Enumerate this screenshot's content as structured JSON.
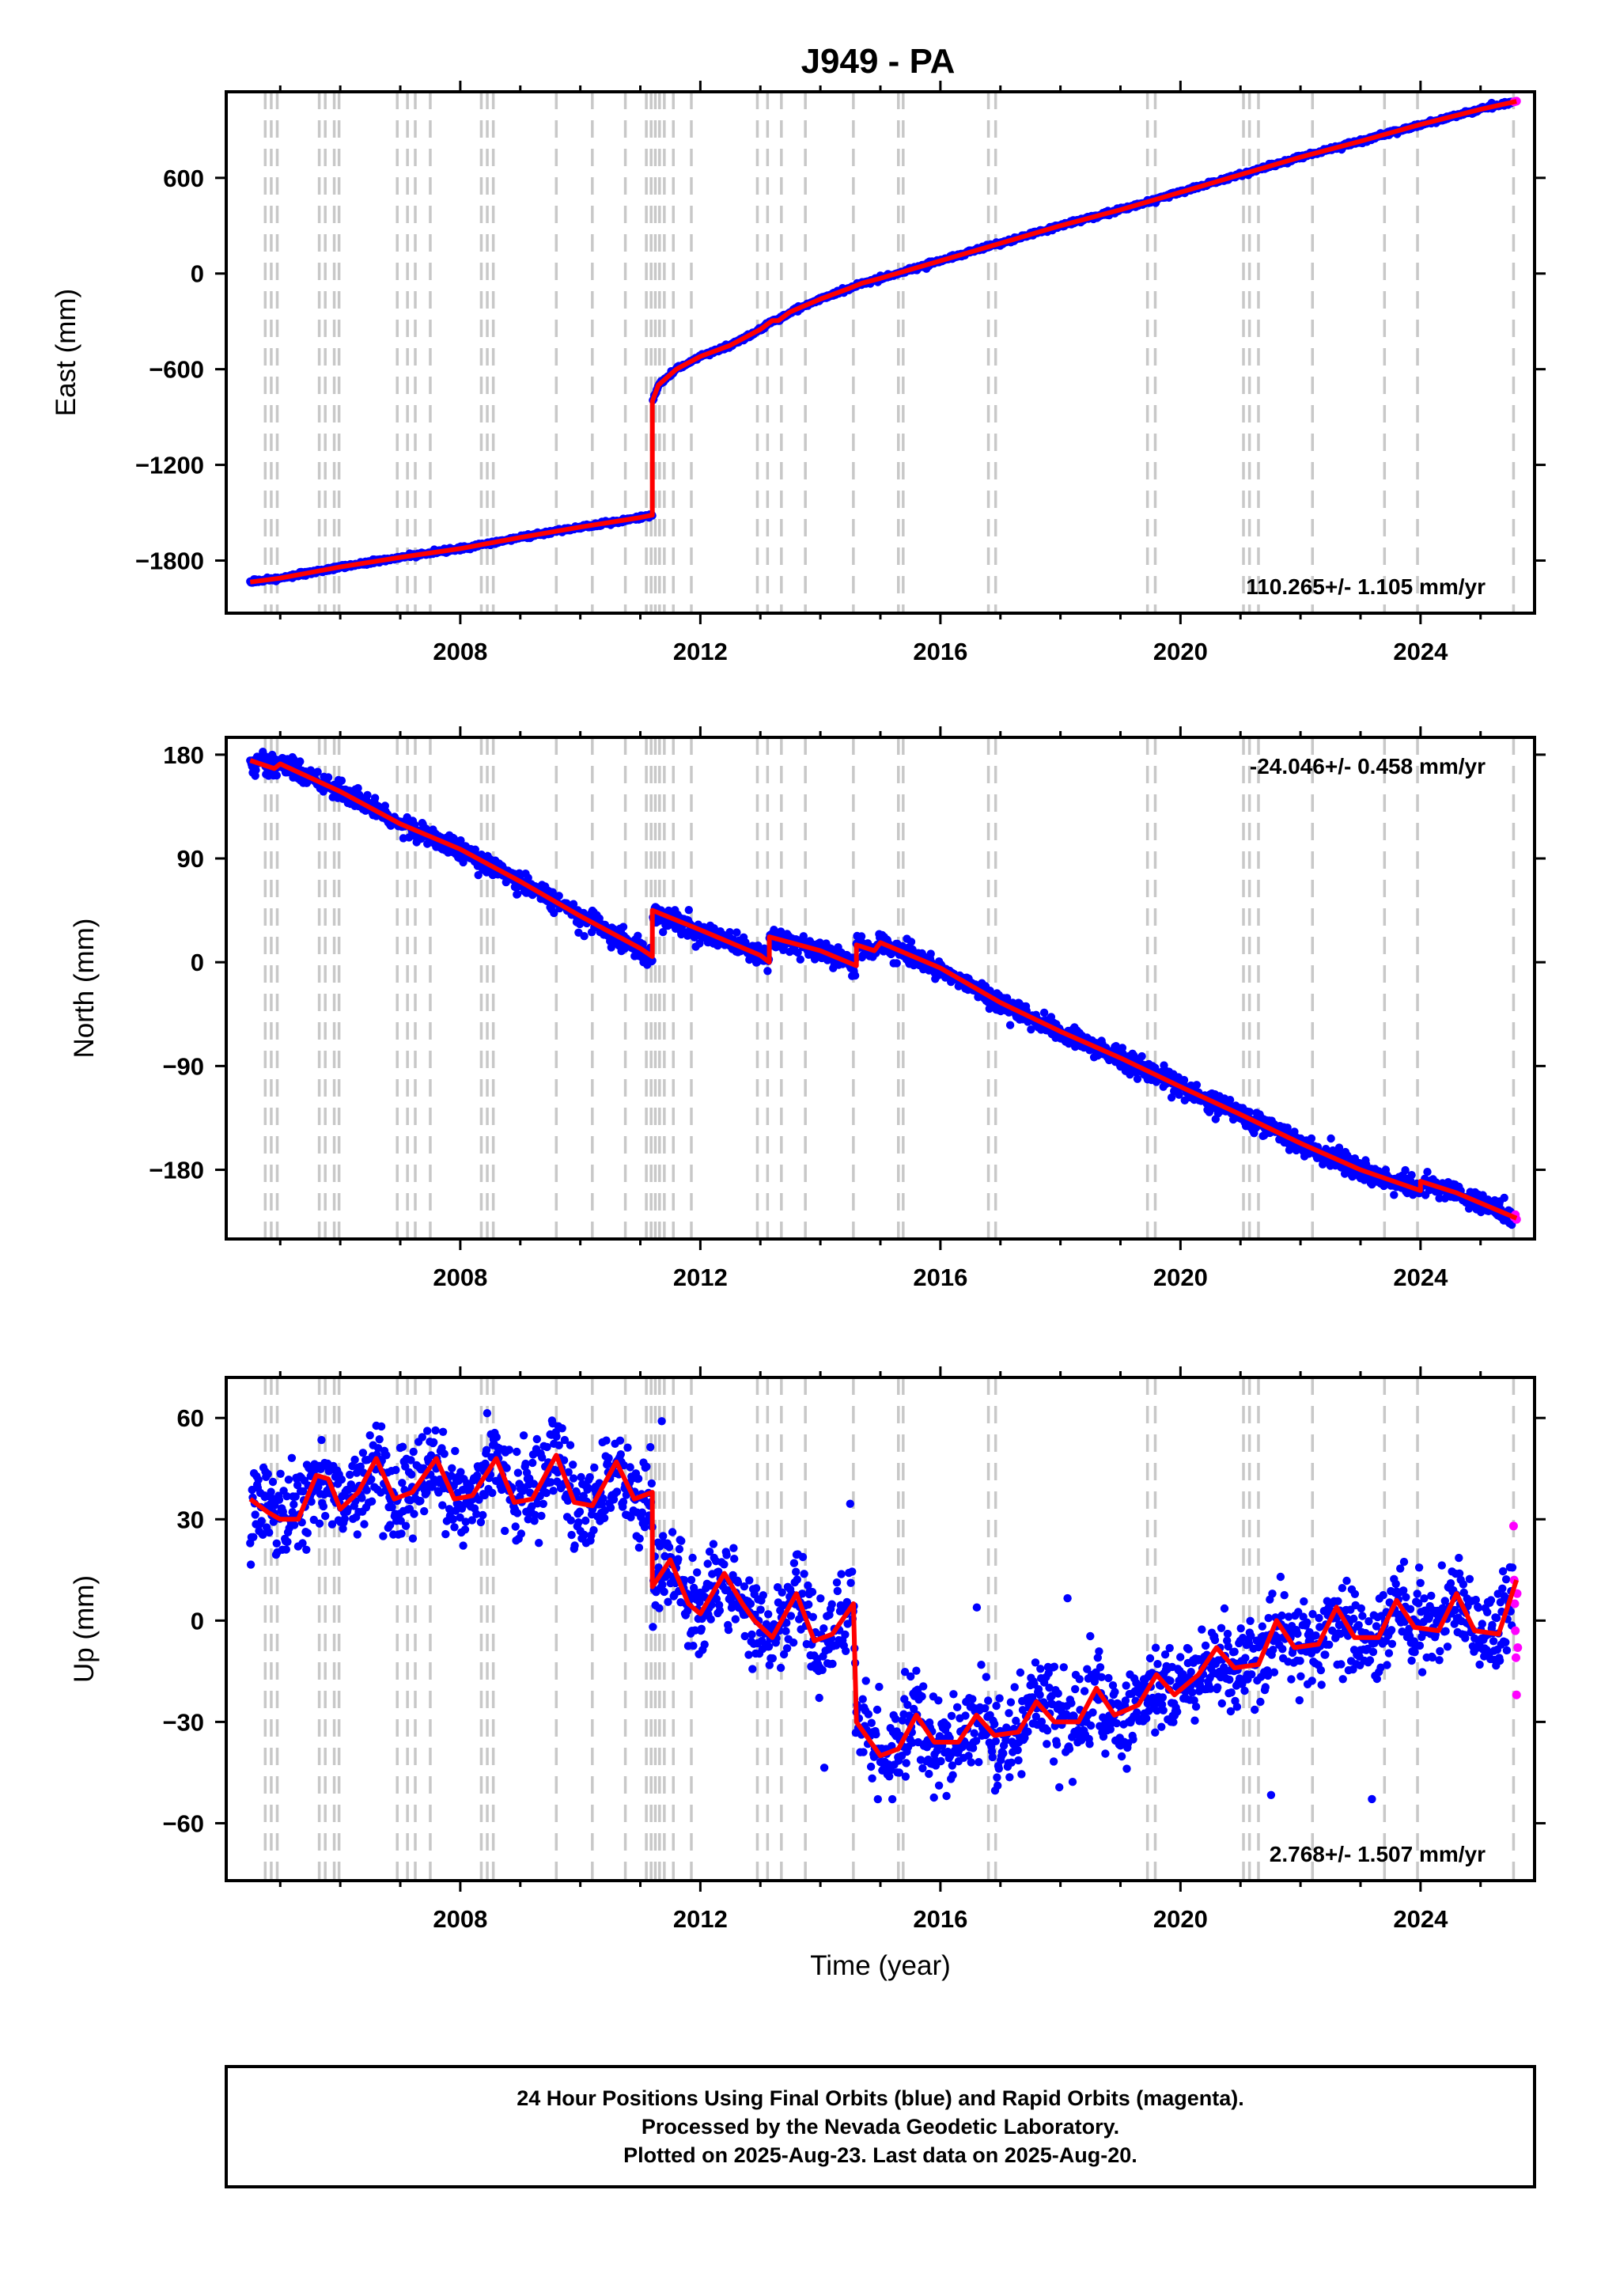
{
  "title": "J949 - PA",
  "colors": {
    "final_orbits": "#0000ff",
    "rapid_orbits": "#ff00ff",
    "model": "#ff0000",
    "event_lines": "#c8c8c8",
    "frame": "#000000"
  },
  "events": [
    2004.75,
    2004.85,
    2004.95,
    2005.65,
    2005.75,
    2005.9,
    2005.98,
    2006.95,
    2007.12,
    2007.25,
    2007.5,
    2008.35,
    2008.45,
    2008.55,
    2009.6,
    2010.2,
    2010.75,
    2011.1,
    2011.18,
    2011.25,
    2011.32,
    2011.4,
    2011.55,
    2011.85,
    2012.95,
    2013.12,
    2013.35,
    2013.75,
    2014.55,
    2015.3,
    2015.38,
    2016.8,
    2016.92,
    2019.45,
    2019.58,
    2021.05,
    2021.15,
    2021.3,
    2022.2,
    2023.4,
    2023.95,
    2025.55
  ],
  "x_axis": {
    "label": "Time (year)",
    "range": [
      2004.1,
      2025.9
    ],
    "ticks": [
      2008,
      2012,
      2016,
      2020,
      2024
    ],
    "tick_labels": [
      "2008",
      "2012",
      "2016",
      "2020",
      "2024"
    ]
  },
  "chart_data": [
    {
      "type": "scatter",
      "panel": "east",
      "ylabel": "East (mm)",
      "ylim": [
        -2130,
        1140
      ],
      "yticks": [
        600,
        0,
        -600,
        -1200,
        -1800
      ],
      "ytick_labels": [
        "600",
        "0",
        "−600",
        "−1200",
        "−1800"
      ],
      "rate_label": "110.265+/- 1.105 mm/yr",
      "rate_position": "bottom-right",
      "model_series": [
        [
          2004.5,
          -1935
        ],
        [
          2005.0,
          -1910
        ],
        [
          2006.0,
          -1840
        ],
        [
          2007.0,
          -1780
        ],
        [
          2008.0,
          -1725
        ],
        [
          2009.0,
          -1655
        ],
        [
          2010.0,
          -1590
        ],
        [
          2011.0,
          -1530
        ],
        [
          2011.2,
          -1515
        ],
        [
          2011.2,
          -800
        ],
        [
          2011.3,
          -700
        ],
        [
          2011.6,
          -600
        ],
        [
          2012.0,
          -520
        ],
        [
          2012.5,
          -450
        ],
        [
          2013.0,
          -350
        ],
        [
          2013.2,
          -295
        ],
        [
          2013.3,
          -295
        ],
        [
          2013.5,
          -240
        ],
        [
          2014.0,
          -160
        ],
        [
          2014.5,
          -90
        ],
        [
          2014.7,
          -60
        ],
        [
          2015.0,
          -30
        ],
        [
          2016.0,
          80
        ],
        [
          2017.0,
          190
        ],
        [
          2018.0,
          300
        ],
        [
          2019.0,
          400
        ],
        [
          2020.0,
          510
        ],
        [
          2021.0,
          620
        ],
        [
          2022.0,
          730
        ],
        [
          2023.0,
          830
        ],
        [
          2024.0,
          935
        ],
        [
          2025.0,
          1030
        ],
        [
          2025.6,
          1080
        ]
      ],
      "rapid_points": [
        [
          2025.56,
          1077
        ],
        [
          2025.58,
          1079
        ],
        [
          2025.6,
          1081
        ]
      ]
    },
    {
      "type": "scatter",
      "panel": "north",
      "ylabel": "North (mm)",
      "ylim": [
        -240,
        195
      ],
      "yticks": [
        180,
        90,
        0,
        -90,
        -180
      ],
      "ytick_labels": [
        "180",
        "90",
        "0",
        "−90",
        "−180"
      ],
      "rate_label": "-24.046+/- 0.458 mm/yr",
      "rate_position": "top-right",
      "model_series": [
        [
          2004.5,
          175
        ],
        [
          2004.9,
          168
        ],
        [
          2005.0,
          172
        ],
        [
          2006.0,
          148
        ],
        [
          2007.0,
          120
        ],
        [
          2008.0,
          98
        ],
        [
          2009.0,
          70
        ],
        [
          2010.0,
          40
        ],
        [
          2011.0,
          12
        ],
        [
          2011.2,
          5
        ],
        [
          2011.2,
          45
        ],
        [
          2012.0,
          28
        ],
        [
          2013.0,
          6
        ],
        [
          2013.15,
          0
        ],
        [
          2013.15,
          22
        ],
        [
          2014.0,
          10
        ],
        [
          2014.6,
          -3
        ],
        [
          2014.6,
          15
        ],
        [
          2014.9,
          10
        ],
        [
          2015.0,
          17
        ],
        [
          2016.0,
          -5
        ],
        [
          2017.0,
          -35
        ],
        [
          2018.0,
          -60
        ],
        [
          2019.0,
          -83
        ],
        [
          2020.0,
          -108
        ],
        [
          2021.0,
          -132
        ],
        [
          2022.0,
          -157
        ],
        [
          2023.0,
          -180
        ],
        [
          2024.0,
          -198
        ],
        [
          2024.0,
          -190
        ],
        [
          2024.6,
          -200
        ],
        [
          2025.6,
          -222
        ]
      ],
      "rapid_points": [
        [
          2025.56,
          -221
        ],
        [
          2025.58,
          -219
        ],
        [
          2025.6,
          -223
        ]
      ]
    },
    {
      "type": "scatter",
      "panel": "up",
      "ylabel": "Up (mm)",
      "ylim": [
        -77,
        72
      ],
      "yticks": [
        60,
        30,
        0,
        -30,
        -60
      ],
      "ytick_labels": [
        "60",
        "30",
        "0",
        "−30",
        "−60"
      ],
      "rate_label": "2.768+/- 1.507 mm/yr",
      "rate_position": "bottom-right",
      "model_series": [
        [
          2004.5,
          36
        ],
        [
          2004.8,
          32
        ],
        [
          2005.0,
          30
        ],
        [
          2005.3,
          30
        ],
        [
          2005.6,
          43
        ],
        [
          2005.8,
          42
        ],
        [
          2006.0,
          33
        ],
        [
          2006.3,
          38
        ],
        [
          2006.6,
          48
        ],
        [
          2006.9,
          36
        ],
        [
          2007.2,
          38
        ],
        [
          2007.6,
          48
        ],
        [
          2007.9,
          36
        ],
        [
          2008.2,
          37
        ],
        [
          2008.6,
          48
        ],
        [
          2008.9,
          35
        ],
        [
          2009.2,
          36
        ],
        [
          2009.6,
          49
        ],
        [
          2009.9,
          35
        ],
        [
          2010.2,
          34
        ],
        [
          2010.6,
          47
        ],
        [
          2010.9,
          36
        ],
        [
          2011.2,
          38
        ],
        [
          2011.2,
          10
        ],
        [
          2011.5,
          18
        ],
        [
          2011.8,
          5
        ],
        [
          2012.0,
          2
        ],
        [
          2012.4,
          14
        ],
        [
          2012.7,
          5
        ],
        [
          2012.9,
          0
        ],
        [
          2013.2,
          -5
        ],
        [
          2013.6,
          8
        ],
        [
          2013.9,
          -6
        ],
        [
          2014.2,
          -4
        ],
        [
          2014.55,
          5
        ],
        [
          2014.6,
          -30
        ],
        [
          2015.0,
          -40
        ],
        [
          2015.3,
          -38
        ],
        [
          2015.6,
          -28
        ],
        [
          2015.9,
          -36
        ],
        [
          2016.3,
          -36
        ],
        [
          2016.6,
          -28
        ],
        [
          2016.9,
          -34
        ],
        [
          2017.3,
          -33
        ],
        [
          2017.6,
          -24
        ],
        [
          2017.9,
          -30
        ],
        [
          2018.3,
          -30
        ],
        [
          2018.6,
          -20
        ],
        [
          2018.9,
          -28
        ],
        [
          2019.3,
          -25
        ],
        [
          2019.6,
          -16
        ],
        [
          2019.9,
          -22
        ],
        [
          2020.3,
          -16
        ],
        [
          2020.6,
          -8
        ],
        [
          2020.9,
          -14
        ],
        [
          2021.3,
          -13
        ],
        [
          2021.6,
          0
        ],
        [
          2021.9,
          -8
        ],
        [
          2022.3,
          -7
        ],
        [
          2022.6,
          4
        ],
        [
          2022.9,
          -5
        ],
        [
          2023.3,
          -5
        ],
        [
          2023.6,
          6
        ],
        [
          2023.9,
          -2
        ],
        [
          2024.3,
          -3
        ],
        [
          2024.6,
          8
        ],
        [
          2024.9,
          -3
        ],
        [
          2025.3,
          -4
        ],
        [
          2025.6,
          12
        ]
      ],
      "rapid_points": [
        [
          2025.55,
          28
        ],
        [
          2025.56,
          12
        ],
        [
          2025.57,
          5
        ],
        [
          2025.58,
          -3
        ],
        [
          2025.59,
          -11
        ],
        [
          2025.6,
          -22
        ],
        [
          2025.61,
          8
        ],
        [
          2025.62,
          -8
        ]
      ]
    }
  ],
  "footer": {
    "line1": "24 Hour Positions Using Final Orbits (blue) and Rapid Orbits (magenta).",
    "line2": "Processed by the Nevada Geodetic Laboratory.",
    "line3": "Plotted on 2025-Aug-23. Last data on 2025-Aug-20."
  }
}
